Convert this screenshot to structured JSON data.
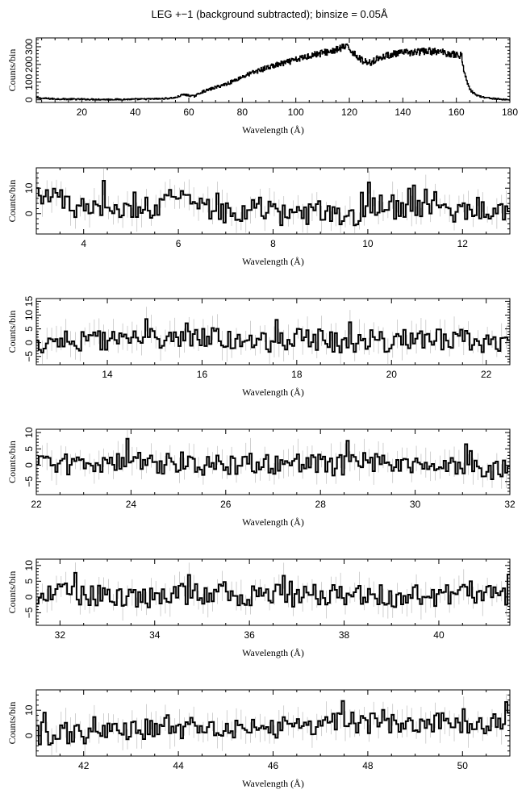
{
  "figure": {
    "title": "LEG +−1 (background subtracted); binsize = 0.05Å"
  },
  "chart_data": [
    {
      "type": "line",
      "xlabel": "Wavelength (Å)",
      "ylabel": "Counts/bin",
      "xlim": [
        3,
        180
      ],
      "ylim": [
        -15,
        350
      ],
      "xticks": [
        20,
        40,
        60,
        80,
        100,
        120,
        140,
        160,
        180
      ],
      "yticks": [
        0,
        100,
        200,
        300
      ],
      "grid": false,
      "series": [
        {
          "x": [
            3,
            10,
            20,
            30,
            40,
            50,
            55,
            58,
            60,
            62,
            65,
            70,
            75,
            80,
            85,
            90,
            95,
            100,
            105,
            110,
            115,
            118,
            120,
            122,
            125,
            128,
            130,
            135,
            140,
            145,
            150,
            155,
            160,
            162,
            163,
            165,
            167,
            170,
            175,
            180
          ],
          "y": [
            10,
            5,
            3,
            2,
            3,
            6,
            12,
            30,
            25,
            20,
            45,
            70,
            95,
            130,
            160,
            185,
            205,
            225,
            250,
            265,
            280,
            300,
            290,
            260,
            220,
            210,
            230,
            255,
            265,
            270,
            275,
            268,
            255,
            250,
            150,
            60,
            30,
            15,
            5,
            0
          ]
        }
      ]
    },
    {
      "type": "line",
      "xlabel": "Wavelength (Å)",
      "ylabel": "Counts/bin",
      "xlim": [
        3,
        13
      ],
      "ylim": [
        -8,
        18
      ],
      "xticks": [
        4,
        6,
        8,
        10,
        12
      ],
      "yticks": [
        0,
        10
      ],
      "grid": false,
      "series": [
        {
          "x": [
            3.0,
            3.25,
            3.5,
            3.75,
            4.0,
            4.25,
            4.5,
            4.75,
            5.0,
            5.25,
            5.5,
            5.75,
            6.0,
            6.25,
            6.5,
            6.75,
            7.0,
            7.25,
            7.5,
            7.75,
            8.0,
            8.25,
            8.5,
            8.75,
            9.0,
            9.25,
            9.5,
            9.75,
            10.0,
            10.25,
            10.5,
            10.75,
            11.0,
            11.25,
            11.5,
            11.75,
            12.0,
            12.25,
            12.5,
            12.75,
            13.0
          ],
          "y": [
            8,
            5,
            4,
            3,
            2,
            3,
            4,
            2,
            1,
            3,
            2,
            7,
            6,
            3,
            2,
            2,
            0,
            1,
            1,
            3,
            0,
            -1,
            -1,
            0,
            1,
            1,
            -1,
            -2,
            3,
            2,
            1,
            1,
            2,
            1,
            2,
            0,
            2,
            0,
            1,
            0,
            1
          ]
        }
      ]
    },
    {
      "type": "line",
      "xlabel": "Wavelength (Å)",
      "ylabel": "Counts/bin",
      "xlim": [
        12.5,
        22.5
      ],
      "ylim": [
        -8,
        16
      ],
      "xticks": [
        14,
        16,
        18,
        20,
        22
      ],
      "yticks": [
        -5,
        0,
        5,
        10,
        15
      ],
      "grid": false,
      "series": [
        {
          "x": [
            12.5,
            13.0,
            13.5,
            14.0,
            14.5,
            15.0,
            15.5,
            16.0,
            16.5,
            17.0,
            17.5,
            18.0,
            18.5,
            19.0,
            19.5,
            20.0,
            20.5,
            21.0,
            21.5,
            22.0,
            22.5
          ],
          "y": [
            0,
            1,
            0,
            1,
            3,
            1,
            0,
            2,
            1,
            1,
            0,
            2,
            1,
            0,
            1,
            0,
            2,
            1,
            1,
            0,
            0
          ]
        }
      ]
    },
    {
      "type": "line",
      "xlabel": "Wavelength (Å)",
      "ylabel": "Counts/bin",
      "xlim": [
        22,
        32
      ],
      "ylim": [
        -9,
        11
      ],
      "xticks": [
        22,
        24,
        26,
        28,
        30,
        32
      ],
      "yticks": [
        -5,
        0,
        5,
        10
      ],
      "grid": false,
      "series": [
        {
          "x": [
            22,
            22.5,
            23,
            23.5,
            24,
            24.5,
            25,
            25.5,
            26,
            26.5,
            27,
            27.5,
            28,
            28.5,
            29,
            29.5,
            30,
            30.5,
            31,
            31.5,
            32
          ],
          "y": [
            1,
            0,
            1,
            0,
            1,
            0,
            1,
            0,
            0,
            1,
            0,
            1,
            0,
            0,
            1,
            0,
            1,
            0,
            0,
            -1,
            -2
          ]
        }
      ]
    },
    {
      "type": "line",
      "xlabel": "Wavelength (Å)",
      "ylabel": "Counts/bin",
      "xlim": [
        31.5,
        41.5
      ],
      "ylim": [
        -9,
        12
      ],
      "xticks": [
        32,
        34,
        36,
        38,
        40
      ],
      "yticks": [
        -5,
        0,
        5,
        10
      ],
      "grid": false,
      "series": [
        {
          "x": [
            31.5,
            32,
            32.5,
            33,
            33.5,
            34,
            34.5,
            35,
            35.5,
            36,
            36.5,
            37,
            37.5,
            38,
            38.5,
            39,
            39.5,
            40,
            40.5,
            41,
            41.5
          ],
          "y": [
            0,
            1,
            0,
            1,
            0,
            0,
            1,
            0,
            1,
            0,
            1,
            0,
            1,
            0,
            1,
            0,
            1,
            0,
            2,
            1,
            0
          ]
        }
      ]
    },
    {
      "type": "line",
      "xlabel": "Wavelength (Å)",
      "ylabel": "Counts/bin",
      "xlim": [
        41,
        51
      ],
      "ylim": [
        -8,
        18
      ],
      "xticks": [
        42,
        44,
        46,
        48,
        50
      ],
      "yticks": [
        0,
        10
      ],
      "grid": false,
      "series": [
        {
          "x": [
            41,
            41.5,
            42,
            42.5,
            43,
            43.5,
            44,
            44.5,
            45,
            45.5,
            46,
            46.5,
            47,
            47.5,
            48,
            48.5,
            49,
            49.5,
            50,
            50.5,
            51
          ],
          "y": [
            0,
            0,
            1,
            2,
            2,
            3,
            3,
            3,
            2,
            3,
            3,
            4,
            4,
            5,
            5,
            5,
            5,
            5,
            5,
            5,
            5
          ]
        }
      ]
    }
  ]
}
